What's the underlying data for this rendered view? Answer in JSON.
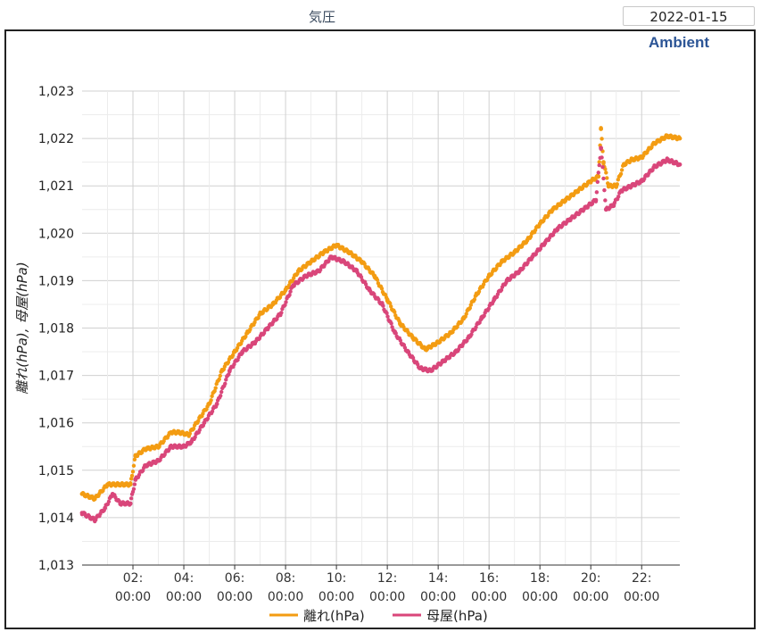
{
  "header": {
    "title": "気圧",
    "date": "2022-01-15"
  },
  "brand": "Ambient",
  "chart_data": {
    "type": "scatter",
    "ylabel": "離れ(hPa), 母屋(hPa)",
    "xlabel": "",
    "ylim": [
      1013,
      1023
    ],
    "y_ticks": [
      "1,013",
      "1,014",
      "1,015",
      "1,016",
      "1,017",
      "1,018",
      "1,019",
      "1,020",
      "1,021",
      "1,022",
      "1,023"
    ],
    "x_range_hours": [
      0,
      23.5
    ],
    "x_ticks": [
      {
        "h": 2,
        "label1": "02:",
        "label2": "00:00"
      },
      {
        "h": 4,
        "label1": "04:",
        "label2": "00:00"
      },
      {
        "h": 6,
        "label1": "06:",
        "label2": "00:00"
      },
      {
        "h": 8,
        "label1": "08:",
        "label2": "00:00"
      },
      {
        "h": 10,
        "label1": "10:",
        "label2": "00:00"
      },
      {
        "h": 12,
        "label1": "12:",
        "label2": "00:00"
      },
      {
        "h": 14,
        "label1": "14:",
        "label2": "00:00"
      },
      {
        "h": 16,
        "label1": "16:",
        "label2": "00:00"
      },
      {
        "h": 18,
        "label1": "18:",
        "label2": "00:00"
      },
      {
        "h": 20,
        "label1": "20:",
        "label2": "00:00"
      },
      {
        "h": 22,
        "label1": "22:",
        "label2": "00:00"
      }
    ],
    "grid": true,
    "legend_position": "bottom",
    "series": [
      {
        "name": "離れ(hPa)",
        "color": "#f39c12",
        "points": [
          [
            0.0,
            1014.5
          ],
          [
            0.5,
            1014.4
          ],
          [
            1.0,
            1014.7
          ],
          [
            1.5,
            1014.7
          ],
          [
            1.9,
            1014.7
          ],
          [
            2.1,
            1015.3
          ],
          [
            2.5,
            1015.45
          ],
          [
            3.0,
            1015.5
          ],
          [
            3.5,
            1015.8
          ],
          [
            3.8,
            1015.8
          ],
          [
            4.2,
            1015.75
          ],
          [
            4.5,
            1016.0
          ],
          [
            5.0,
            1016.4
          ],
          [
            5.5,
            1017.1
          ],
          [
            6.0,
            1017.5
          ],
          [
            6.5,
            1017.9
          ],
          [
            7.0,
            1018.3
          ],
          [
            7.5,
            1018.5
          ],
          [
            8.0,
            1018.8
          ],
          [
            8.5,
            1019.2
          ],
          [
            9.0,
            1019.4
          ],
          [
            9.5,
            1019.6
          ],
          [
            10.0,
            1019.75
          ],
          [
            10.5,
            1019.6
          ],
          [
            11.0,
            1019.4
          ],
          [
            11.5,
            1019.1
          ],
          [
            12.0,
            1018.6
          ],
          [
            12.5,
            1018.1
          ],
          [
            13.0,
            1017.8
          ],
          [
            13.5,
            1017.55
          ],
          [
            14.0,
            1017.7
          ],
          [
            14.5,
            1017.9
          ],
          [
            15.0,
            1018.2
          ],
          [
            15.5,
            1018.7
          ],
          [
            16.0,
            1019.1
          ],
          [
            16.5,
            1019.4
          ],
          [
            17.0,
            1019.6
          ],
          [
            17.5,
            1019.85
          ],
          [
            18.0,
            1020.2
          ],
          [
            18.5,
            1020.5
          ],
          [
            19.0,
            1020.7
          ],
          [
            19.5,
            1020.9
          ],
          [
            20.0,
            1021.1
          ],
          [
            20.3,
            1021.2
          ],
          [
            20.4,
            1022.2
          ],
          [
            20.5,
            1021.5
          ],
          [
            20.7,
            1021.0
          ],
          [
            21.0,
            1021.0
          ],
          [
            21.3,
            1021.45
          ],
          [
            21.6,
            1021.55
          ],
          [
            22.0,
            1021.6
          ],
          [
            22.5,
            1021.9
          ],
          [
            23.0,
            1022.05
          ],
          [
            23.5,
            1022.0
          ]
        ]
      },
      {
        "name": "母屋(hPa)",
        "color": "#d9467a",
        "points": [
          [
            0.0,
            1014.1
          ],
          [
            0.5,
            1013.95
          ],
          [
            0.9,
            1014.2
          ],
          [
            1.2,
            1014.5
          ],
          [
            1.5,
            1014.3
          ],
          [
            1.9,
            1014.3
          ],
          [
            2.1,
            1014.8
          ],
          [
            2.5,
            1015.1
          ],
          [
            3.0,
            1015.2
          ],
          [
            3.5,
            1015.5
          ],
          [
            4.0,
            1015.5
          ],
          [
            4.3,
            1015.6
          ],
          [
            4.8,
            1016.0
          ],
          [
            5.3,
            1016.4
          ],
          [
            5.8,
            1017.1
          ],
          [
            6.3,
            1017.5
          ],
          [
            6.8,
            1017.7
          ],
          [
            7.3,
            1018.0
          ],
          [
            7.8,
            1018.3
          ],
          [
            8.3,
            1018.9
          ],
          [
            8.8,
            1019.1
          ],
          [
            9.3,
            1019.2
          ],
          [
            9.8,
            1019.5
          ],
          [
            10.3,
            1019.4
          ],
          [
            10.8,
            1019.2
          ],
          [
            11.3,
            1018.8
          ],
          [
            11.8,
            1018.5
          ],
          [
            12.3,
            1017.9
          ],
          [
            12.8,
            1017.5
          ],
          [
            13.3,
            1017.15
          ],
          [
            13.7,
            1017.1
          ],
          [
            14.2,
            1017.3
          ],
          [
            14.7,
            1017.5
          ],
          [
            15.2,
            1017.8
          ],
          [
            15.7,
            1018.2
          ],
          [
            16.2,
            1018.6
          ],
          [
            16.7,
            1019.0
          ],
          [
            17.2,
            1019.2
          ],
          [
            17.7,
            1019.5
          ],
          [
            18.2,
            1019.8
          ],
          [
            18.7,
            1020.1
          ],
          [
            19.2,
            1020.3
          ],
          [
            19.7,
            1020.5
          ],
          [
            20.2,
            1020.7
          ],
          [
            20.4,
            1021.8
          ],
          [
            20.6,
            1020.5
          ],
          [
            20.9,
            1020.6
          ],
          [
            21.2,
            1020.9
          ],
          [
            21.6,
            1021.0
          ],
          [
            22.0,
            1021.1
          ],
          [
            22.5,
            1021.4
          ],
          [
            23.0,
            1021.55
          ],
          [
            23.5,
            1021.45
          ]
        ]
      }
    ]
  }
}
